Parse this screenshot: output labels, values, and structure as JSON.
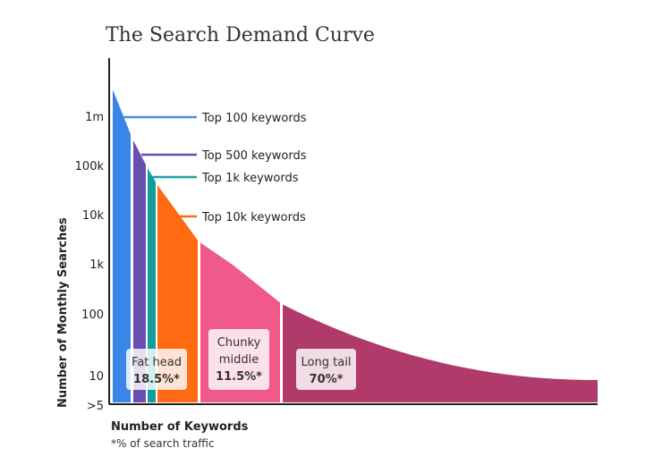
{
  "chart_data": {
    "type": "area",
    "title": "The Search Demand Curve",
    "xlabel": "Number of Keywords",
    "ylabel": "Number of Monthly Searches",
    "footnote": "*% of search traffic",
    "y_scale": "log",
    "y_ticks": [
      {
        "label": "1m",
        "value": 1000000
      },
      {
        "label": "100k",
        "value": 100000
      },
      {
        "label": "10k",
        "value": 10000
      },
      {
        "label": "1k",
        "value": 1000
      },
      {
        "label": "100",
        "value": 100
      },
      {
        "label": "10",
        "value": 10
      },
      {
        "label": ">5",
        "value": 5
      }
    ],
    "callouts": [
      {
        "label": "Top 100 keywords",
        "color": "#4a90e2"
      },
      {
        "label": "Top 500 keywords",
        "color": "#6a4fb3"
      },
      {
        "label": "Top 1k keywords",
        "color": "#1aa3a3"
      },
      {
        "label": "Top 10k keywords",
        "color": "#ff6a13"
      }
    ],
    "segments": [
      {
        "name": "Fat head",
        "share": "18.5%*"
      },
      {
        "name": "Chunky\nmiddle",
        "share": "11.5%*"
      },
      {
        "name": "Long tail",
        "share": "70%*"
      }
    ],
    "colors": {
      "top100": "#3a86e8",
      "top500": "#6a4fb3",
      "top1k": "#139a9a",
      "top10k": "#ff6a13",
      "chunky_middle": "#f05a8a",
      "long_tail": "#b03a6a"
    }
  }
}
